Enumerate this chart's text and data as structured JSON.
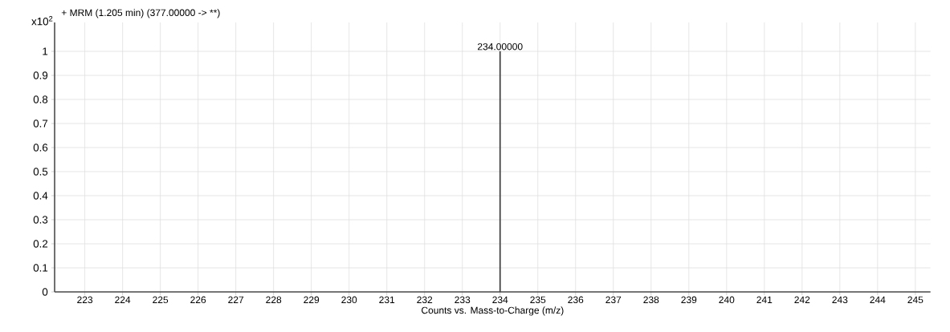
{
  "chart_data": {
    "type": "bar",
    "title": "+ MRM (1.205 min) (377.00000 -> **)",
    "ylabel": "x10$^{2}$",
    "xlabel": "Counts vs. Mass-to-Charge (m/z)",
    "x": [
      234
    ],
    "values": [
      1
    ],
    "color": "#444444",
    "annotations": [
      "234.00000"
    ],
    "xlim": [
      222.2,
      245.4
    ],
    "xticks": [
      223,
      224,
      225,
      226,
      227,
      228,
      229,
      230,
      231,
      232,
      233,
      234,
      235,
      236,
      237,
      238,
      239,
      240,
      241,
      242,
      243,
      244,
      245
    ],
    "ylim": [
      0,
      1.12
    ],
    "yticks": [
      0,
      0.1,
      0.2,
      0.3,
      0.4,
      0.5,
      0.6,
      0.7,
      0.8,
      0.9,
      1
    ],
    "grid": true
  }
}
